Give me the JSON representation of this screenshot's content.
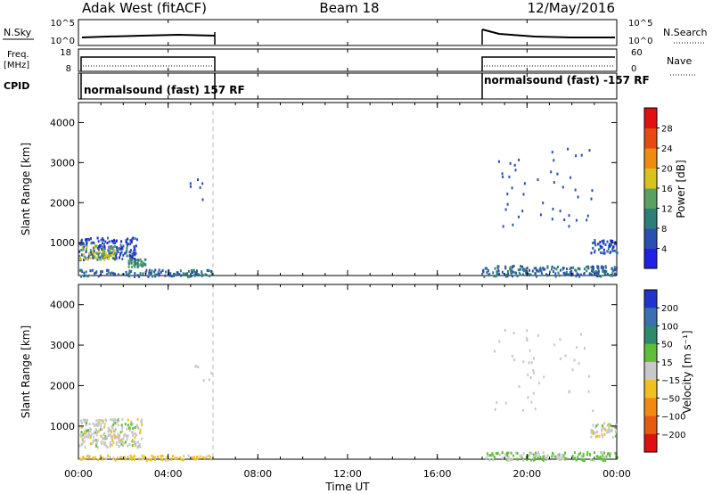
{
  "header": {
    "left_title": "Adak West (fitACF)",
    "center_title": "Beam 18",
    "right_title": "12/May/2016"
  },
  "top_panels": {
    "nsky": {
      "label": "N.Sky",
      "ticks": [
        "10^5",
        "10^0"
      ],
      "right_ticks": [
        "10^5",
        "10^0"
      ],
      "right_label": "N.Search"
    },
    "freq": {
      "label_line1": "Freq.",
      "label_line2": "[MHz]",
      "ticks": [
        "18",
        "8"
      ],
      "right_ticks": [
        "60",
        "0"
      ],
      "right_label": "Nave"
    },
    "cpid": {
      "label": "CPID",
      "segments": [
        {
          "text": "normalsound (fast) 157 RF",
          "start_h": 0,
          "end_h": 6
        },
        {
          "text": "normalsound (fast) -157 RF",
          "start_h": 18,
          "end_h": 24
        }
      ]
    }
  },
  "chart_data": [
    {
      "type": "heatmap",
      "panel": "power",
      "ylabel": "Slant Range [km]",
      "yticks": [
        1000,
        2000,
        3000,
        4000
      ],
      "ylim": [
        180,
        4500
      ],
      "xlim_hours": [
        0,
        24
      ],
      "xticks_hours": [
        0,
        4,
        8,
        12,
        16,
        20,
        24
      ],
      "colorbar": {
        "label": "Power [dB]",
        "ticks": [
          "4",
          "8",
          "12",
          "16",
          "20",
          "24",
          "28"
        ],
        "colors": [
          "#1f1fe6",
          "#2a4fb0",
          "#2d7d78",
          "#5aa060",
          "#d9c21b",
          "#f08a10",
          "#e64a10",
          "#e21010"
        ]
      },
      "data_gaps_hours": [
        [
          6,
          18
        ]
      ],
      "echo_regions": [
        {
          "t": [
            0.0,
            2.6
          ],
          "range_km": [
            600,
            1150
          ],
          "value_db": 6,
          "desc": "ionospheric scatter band"
        },
        {
          "t": [
            0.0,
            1.6
          ],
          "range_km": [
            600,
            950
          ],
          "value_db": 16,
          "desc": "strong near-range echoes"
        },
        {
          "t": [
            2.2,
            3.0
          ],
          "range_km": [
            420,
            620
          ],
          "value_db": 12
        },
        {
          "t": [
            0.0,
            6.0
          ],
          "range_km": [
            180,
            350
          ],
          "value_db": 8,
          "desc": "ground scatter"
        },
        {
          "t": [
            18.0,
            24.0
          ],
          "range_km": [
            180,
            450
          ],
          "value_db": 8,
          "desc": "ground scatter"
        },
        {
          "t": [
            22.8,
            24.0
          ],
          "range_km": [
            750,
            1100
          ],
          "value_db": 6
        }
      ]
    },
    {
      "type": "heatmap",
      "panel": "velocity",
      "ylabel": "Slant Range [km]",
      "yticks": [
        1000,
        2000,
        3000,
        4000
      ],
      "ylim": [
        180,
        4500
      ],
      "xlim_hours": [
        0,
        24
      ],
      "xticks_hours": [
        0,
        4,
        8,
        12,
        16,
        20,
        24
      ],
      "xlabel": "Time UT",
      "xtick_labels": [
        "00:00",
        "04:00",
        "08:00",
        "12:00",
        "16:00",
        "20:00",
        "00:00"
      ],
      "colorbar": {
        "label": "Velocity [m s⁻¹]",
        "ticks": [
          "200",
          "100",
          "50",
          "15",
          "−15",
          "−50",
          "−100",
          "−200"
        ],
        "colors": [
          "#2233cc",
          "#3a6fb0",
          "#2d8a6a",
          "#5fbf3a",
          "#c8c8c8",
          "#f0c020",
          "#f08a10",
          "#e85a10",
          "#e01010"
        ]
      },
      "data_gaps_hours": [
        [
          6,
          18
        ]
      ],
      "echo_regions": [
        {
          "t": [
            0.0,
            2.8
          ],
          "range_km": [
            500,
            1200
          ],
          "value_ms": 0,
          "desc": "low velocity scatter"
        },
        {
          "t": [
            0.0,
            6.0
          ],
          "range_km": [
            180,
            300
          ],
          "value_ms": -30,
          "desc": "ground scatter"
        },
        {
          "t": [
            18.0,
            24.0
          ],
          "range_km": [
            180,
            380
          ],
          "value_ms": 20
        },
        {
          "t": [
            22.8,
            24.0
          ],
          "range_km": [
            750,
            1100
          ],
          "value_ms": 0
        }
      ]
    }
  ]
}
